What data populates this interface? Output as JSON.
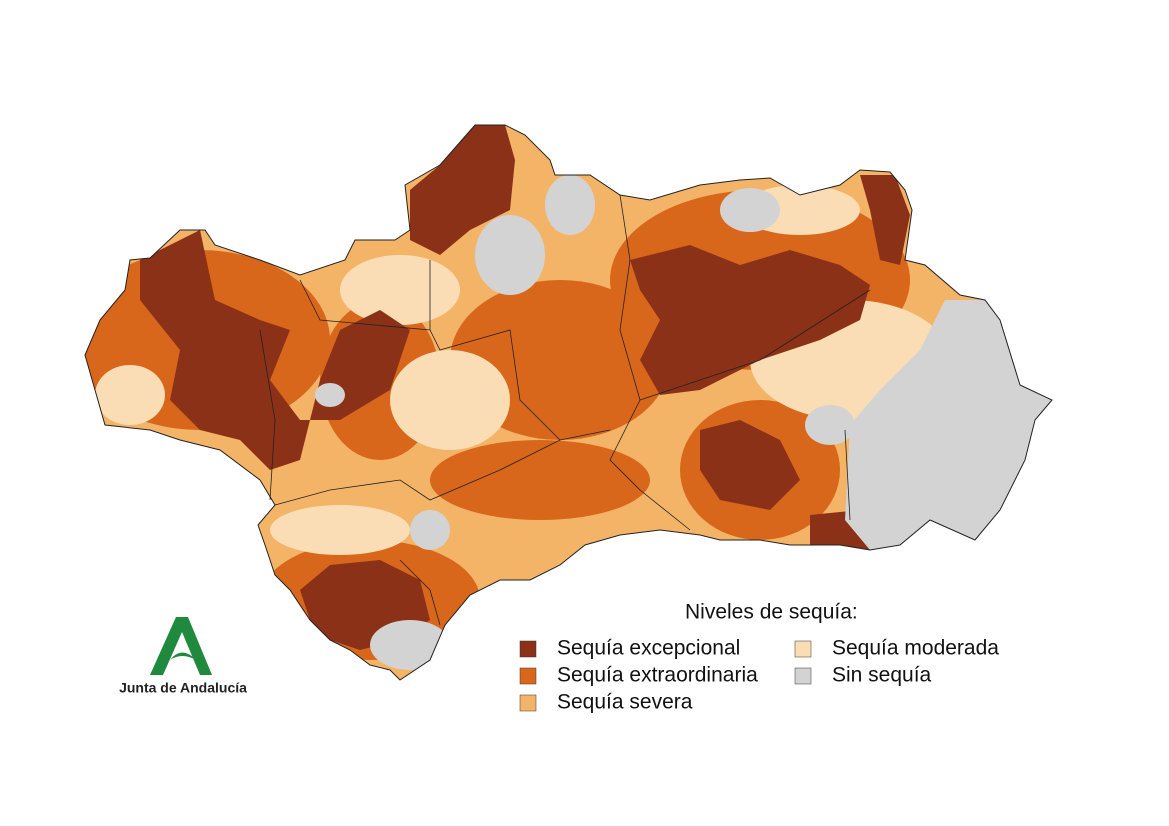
{
  "legend": {
    "title": "Niveles de sequía:",
    "items": [
      {
        "label": "Sequía excepcional",
        "color": "#8b3117"
      },
      {
        "label": "Sequía extraordinaria",
        "color": "#d9671b"
      },
      {
        "label": "Sequía severa",
        "color": "#f4b468"
      },
      {
        "label": "Sequía moderada",
        "color": "#fbddb5"
      },
      {
        "label": "Sin sequía",
        "color": "#d3d3d3"
      }
    ]
  },
  "logo": {
    "text": "Junta de Andalucía"
  }
}
